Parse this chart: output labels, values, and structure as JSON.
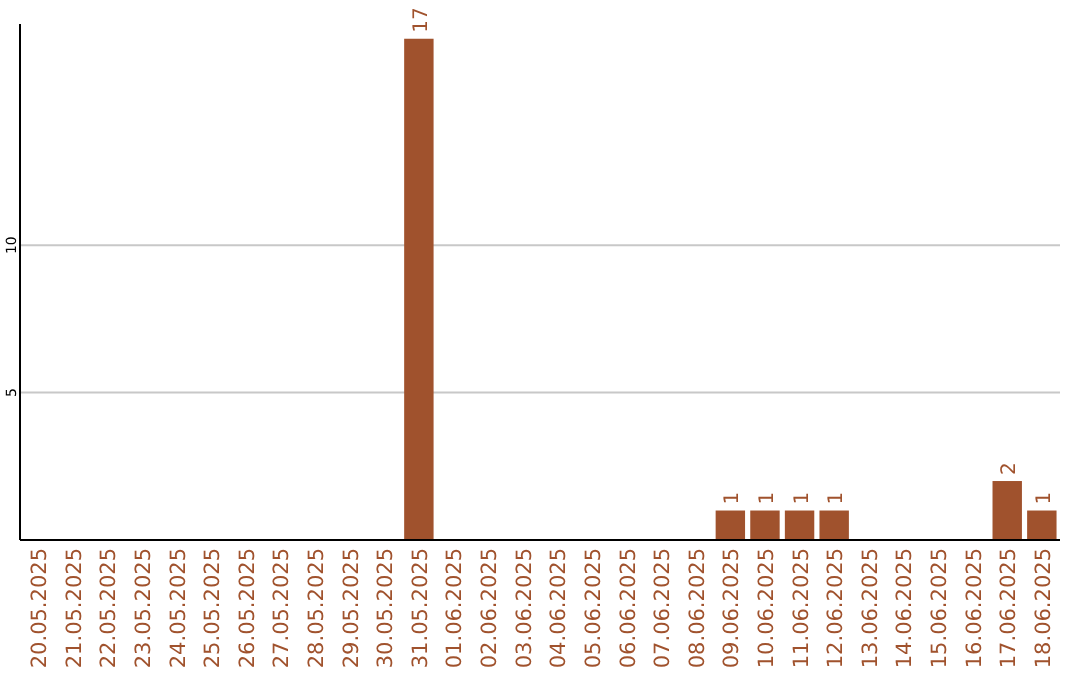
{
  "chart_data": {
    "type": "bar",
    "categories": [
      "20.05.2025",
      "21.05.2025",
      "22.05.2025",
      "23.05.2025",
      "24.05.2025",
      "25.05.2025",
      "26.05.2025",
      "27.05.2025",
      "28.05.2025",
      "29.05.2025",
      "30.05.2025",
      "31.05.2025",
      "01.06.2025",
      "02.06.2025",
      "03.06.2025",
      "04.06.2025",
      "05.06.2025",
      "06.06.2025",
      "07.06.2025",
      "08.06.2025",
      "09.06.2025",
      "10.06.2025",
      "11.06.2025",
      "12.06.2025",
      "13.06.2025",
      "14.06.2025",
      "15.06.2025",
      "16.06.2025",
      "17.06.2025",
      "18.06.2025"
    ],
    "values": [
      0,
      0,
      0,
      0,
      0,
      0,
      0,
      0,
      0,
      0,
      0,
      17,
      0,
      0,
      0,
      0,
      0,
      0,
      0,
      0,
      1,
      1,
      1,
      1,
      0,
      0,
      0,
      0,
      2,
      1
    ],
    "value_labels": [
      null,
      null,
      null,
      null,
      null,
      null,
      null,
      null,
      null,
      null,
      null,
      "17",
      null,
      null,
      null,
      null,
      null,
      null,
      null,
      null,
      "1",
      "1",
      "1",
      "1",
      null,
      null,
      null,
      null,
      "2",
      "1"
    ],
    "color": "#a0522d",
    "ylim": [
      0,
      17.5
    ],
    "yticks": [
      5,
      10
    ],
    "grid": "y"
  }
}
